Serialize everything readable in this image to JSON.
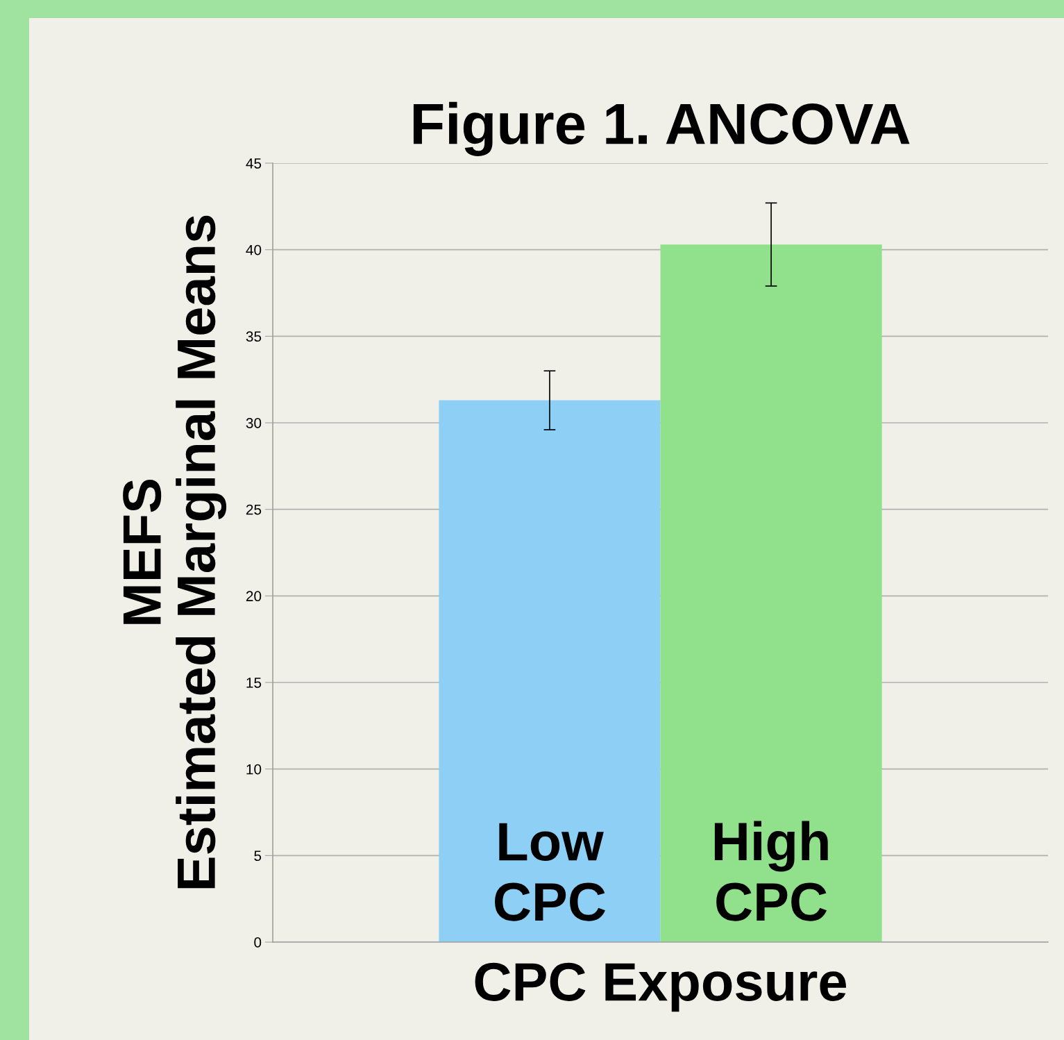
{
  "chart_data": {
    "type": "bar",
    "title": "Figure 1. ANCOVA",
    "xlabel": "CPC Exposure",
    "ylabel": "MEFS\nEstimated Marginal Means",
    "categories": [
      "Low\nCPC",
      "High\nCPC"
    ],
    "values": [
      31.3,
      40.3
    ],
    "colors": [
      "#8ecff5",
      "#90e08c"
    ],
    "errors": [
      1.7,
      2.4
    ],
    "ylim": [
      0,
      45
    ],
    "yticks": [
      0,
      5,
      10,
      15,
      20,
      25,
      30,
      35,
      40,
      45
    ],
    "grid": "y",
    "legend": false
  }
}
